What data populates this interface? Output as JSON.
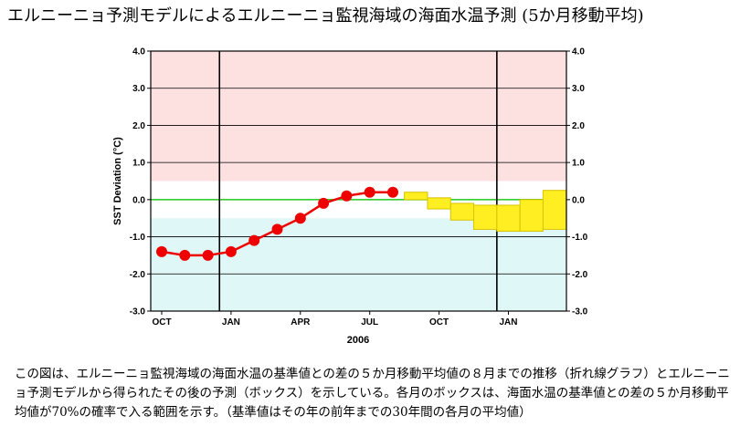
{
  "page": {
    "title": "エルニーニョ予測モデルによるエルニーニョ監視海域の海面水温予測 (5か月移動平均)",
    "caption": "この図は、エルニーニョ監視海域の海面水温の基準値との差の５か月移動平均値の８月までの推移（折れ線グラフ）とエルニーニョ予測モデルから得られたその後の予測（ボックス）を示している。各月のボックスは、海面水温の基準値との差の５か月移動平均値が70%の確率で入る範囲を示す。（基準値はその年の前年までの30年間の各月の平均値）"
  },
  "chart_data": {
    "type": "line",
    "title": "",
    "ylabel": "SST Deviation (°C)",
    "xlabel": "2006",
    "ylim": [
      -3.0,
      4.0
    ],
    "y_ticks": [
      "4.0",
      "3.0",
      "2.0",
      "1.0",
      "0.0",
      "-1.0",
      "-2.0",
      "-3.0"
    ],
    "y_tick_values": [
      4,
      3,
      2,
      1,
      0,
      -1,
      -2,
      -3
    ],
    "x_tick_labels": [
      "OCT",
      "JAN",
      "APR",
      "JUL",
      "OCT",
      "JAN"
    ],
    "x_tick_index": [
      0,
      3,
      6,
      9,
      12,
      15
    ],
    "year_separators_index": [
      2.5,
      14.5
    ],
    "months_total": 18,
    "el_nino_threshold": 0.5,
    "la_nina_threshold": -0.5,
    "observed": {
      "name": "5-month running mean",
      "month_index": [
        0,
        1,
        2,
        3,
        4,
        5,
        6,
        7,
        8,
        9,
        10
      ],
      "values": [
        -1.4,
        -1.5,
        -1.5,
        -1.4,
        -1.1,
        -0.8,
        -0.5,
        -0.1,
        0.1,
        0.2,
        0.2
      ]
    },
    "forecast_boxes": {
      "name": "70% probability range",
      "month_index": [
        11,
        12,
        13,
        14,
        15,
        16,
        17
      ],
      "low": [
        0.0,
        -0.25,
        -0.55,
        -0.8,
        -0.85,
        -0.85,
        -0.8
      ],
      "high": [
        0.2,
        0.05,
        -0.1,
        -0.15,
        -0.15,
        0.0,
        0.25
      ]
    },
    "colors": {
      "warm_zone": "#fde0e0",
      "cold_zone": "#e0f7f7",
      "zero_line": "#33cc33",
      "line": "#ee0000",
      "marker": "#ee0000",
      "box_fill": "#ffee22",
      "box_stroke": "#d8c400"
    }
  }
}
